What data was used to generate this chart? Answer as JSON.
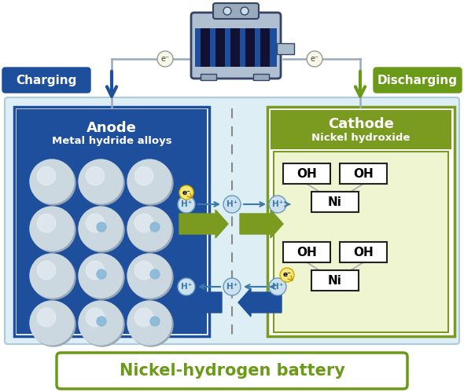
{
  "bg_outer": "#ffffff",
  "main_panel_fill": "#ddeef5",
  "main_panel_edge": "#aaccdd",
  "anode_fill": "#1e4f9c",
  "anode_edge": "#1e4f9c",
  "cathode_outer_fill": "#7a9a20",
  "cathode_outer_edge": "#7a9a20",
  "cathode_inner_fill": "#eef5d0",
  "cathode_inner_edge": "#7a9a20",
  "sphere_base": "#b8c8d4",
  "sphere_mid": "#ccd8e0",
  "sphere_hi": "#e4ecf2",
  "dot_blue": "#88b8d8",
  "arrow_green": "#7a9a20",
  "arrow_blue": "#1e4f9c",
  "arrow_cyan": "#3a7aaa",
  "charge_fill": "#1e4f9c",
  "discharge_fill": "#6a9a18",
  "motor_body_fill": "#aabbcc",
  "motor_body_edge": "#334466",
  "motor_blue_fill": "#1e4f9c",
  "motor_stripe": "#111133",
  "motor_cap_fill": "#99aabb",
  "wire_color": "#99aabb",
  "e_circle_fill": "#f5e878",
  "e_circle_edge": "#c8aa00",
  "title": "Nickel-hydrogen battery",
  "title_color": "#6a9a18",
  "title_edge": "#6a9a18",
  "anode_l1": "Anode",
  "anode_l2": "Metal hydride alloys",
  "cathode_l1": "Cathode",
  "cathode_l2": "Nickel hydroxide",
  "charge_lbl": "Charging",
  "discharge_lbl": "Discharging"
}
